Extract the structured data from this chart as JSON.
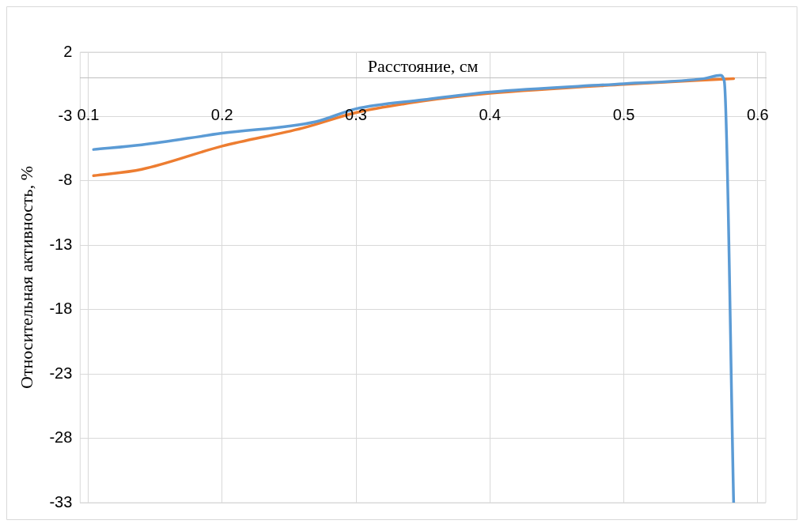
{
  "chart_data": {
    "type": "line",
    "xlabel": "Расстояние, см",
    "ylabel": "Относительная активность, %",
    "xlim": [
      0.094,
      0.606
    ],
    "xticks": [
      0.1,
      0.2,
      0.3,
      0.4,
      0.5,
      0.6
    ],
    "ylim": [
      -33,
      2
    ],
    "yticks": [
      2,
      -3,
      -8,
      -13,
      -18,
      -23,
      -28,
      -33
    ],
    "grid": true,
    "legend": false,
    "marker": "none",
    "line_style": "solid",
    "series": [
      {
        "color": "#5b9bd5",
        "x": [
          0.104,
          0.14,
          0.2,
          0.27,
          0.3,
          0.35,
          0.4,
          0.5,
          0.56,
          0.572,
          0.575,
          0.582
        ],
        "values": [
          -5.56,
          -5.2,
          -4.3,
          -3.4,
          -2.4,
          -1.7,
          -1.1,
          -0.45,
          -0.05,
          0.2,
          -0.25,
          -33
        ]
      },
      {
        "color": "#ed7d31",
        "x": [
          0.104,
          0.14,
          0.2,
          0.26,
          0.3,
          0.35,
          0.4,
          0.5,
          0.582
        ],
        "values": [
          -7.6,
          -7.1,
          -5.3,
          -3.9,
          -2.7,
          -1.8,
          -1.2,
          -0.5,
          -0.06
        ]
      }
    ]
  }
}
